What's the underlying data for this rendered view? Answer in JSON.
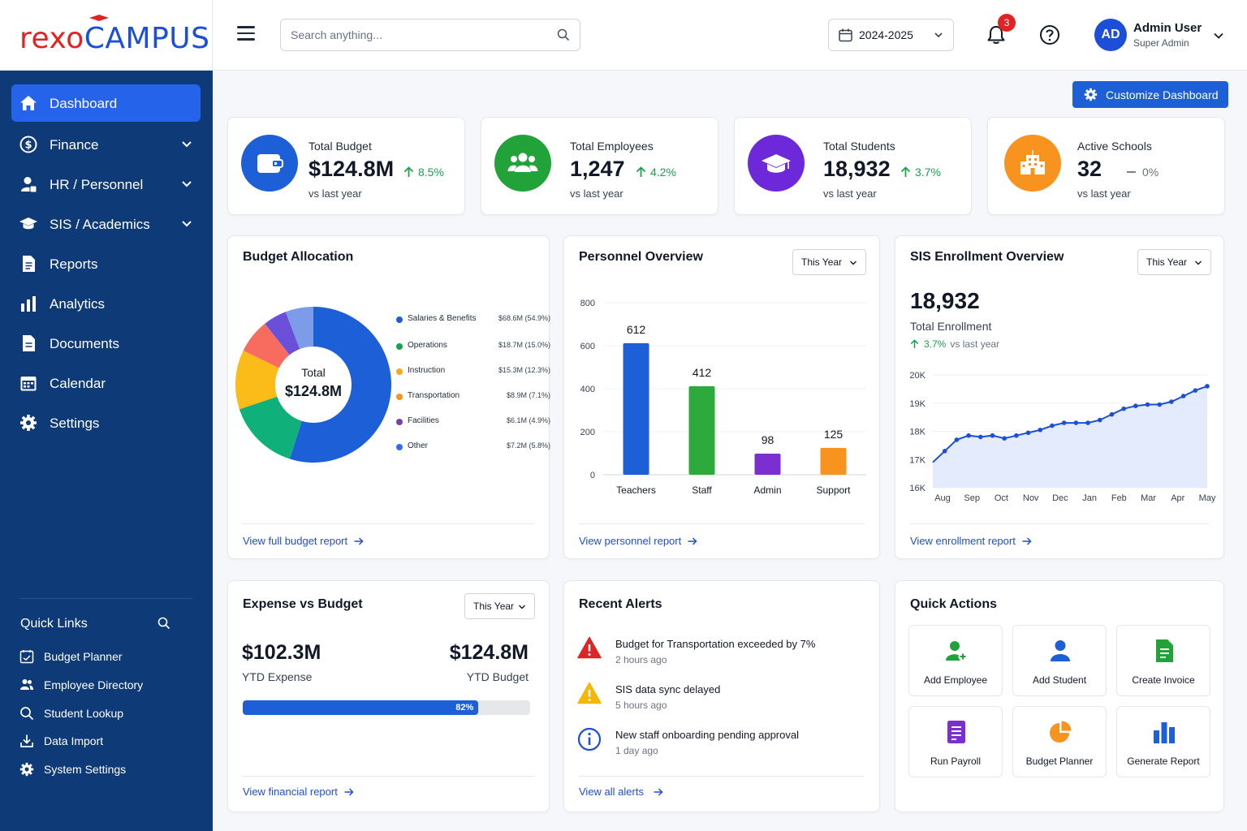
{
  "brand": {
    "part1": "rexo",
    "part2": "CAMPUS"
  },
  "header": {
    "search_placeholder": "Search anything...",
    "year": "2024-2025",
    "notif_count": "3",
    "user_initials": "AD",
    "user_name": "Admin User",
    "user_role": "Super Admin"
  },
  "sidebar": {
    "items": [
      {
        "label": "Dashboard",
        "icon": "home-icon",
        "active": true
      },
      {
        "label": "Finance",
        "icon": "dollar-circle-icon",
        "has_children": true
      },
      {
        "label": "HR / Personnel",
        "icon": "person-badge-icon",
        "has_children": true
      },
      {
        "label": "SIS / Academics",
        "icon": "graduation-cap-icon",
        "has_children": true
      },
      {
        "label": "Reports",
        "icon": "report-icon"
      },
      {
        "label": "Analytics",
        "icon": "bar-chart-icon"
      },
      {
        "label": "Documents",
        "icon": "document-icon"
      },
      {
        "label": "Calendar",
        "icon": "calendar-icon"
      },
      {
        "label": "Settings",
        "icon": "gear-icon"
      }
    ],
    "quick_links_title": "Quick Links",
    "quick_links": [
      {
        "label": "Budget Planner",
        "icon": "budget-planner-icon"
      },
      {
        "label": "Employee Directory",
        "icon": "people-icon"
      },
      {
        "label": "Student Lookup",
        "icon": "search-icon"
      },
      {
        "label": "Data Import",
        "icon": "download-icon"
      },
      {
        "label": "System Settings",
        "icon": "gear-icon"
      }
    ]
  },
  "customize_label": "Customize Dashboard",
  "stats": [
    {
      "label": "Total Budget",
      "value": "$124.8M",
      "change": "8.5%",
      "trend": "up",
      "sub": "vs last year",
      "color": "#1d5fd6",
      "icon": "wallet-icon"
    },
    {
      "label": "Total Employees",
      "value": "1,247",
      "change": "4.2%",
      "trend": "up",
      "sub": "vs last year",
      "color": "#22a33a",
      "icon": "people-icon"
    },
    {
      "label": "Total Students",
      "value": "18,932",
      "change": "3.7%",
      "trend": "up",
      "sub": "vs last year",
      "color": "#6d28d9",
      "icon": "graduation-cap-icon"
    },
    {
      "label": "Active Schools",
      "value": "32",
      "change": "0%",
      "trend": "flat",
      "sub": "vs last year",
      "color": "#f7931e",
      "icon": "school-icon"
    }
  ],
  "budget": {
    "title": "Budget Allocation",
    "center_label": "Total",
    "center_value": "$124.8M",
    "link": "View full budget report"
  },
  "personnel": {
    "title": "Personnel Overview",
    "select": "This Year",
    "link": "View personnel report"
  },
  "enrollment": {
    "title": "SIS Enrollment Overview",
    "select": "This Year",
    "value": "18,932",
    "label": "Total Enrollment",
    "change": "3.7%",
    "change_sub": "vs last year",
    "link": "View enrollment report"
  },
  "expense": {
    "title": "Expense vs Budget",
    "select": "This Year",
    "ytd_expense": "$102.3M",
    "ytd_expense_label": "YTD Expense",
    "ytd_budget": "$124.8M",
    "ytd_budget_label": "YTD Budget",
    "progress": 0.82,
    "progress_label": "82%",
    "link": "View financial report"
  },
  "alerts": {
    "title": "Recent Alerts",
    "items": [
      {
        "title": "Budget for Transportation exceeded by 7%",
        "time": "2 hours ago",
        "icon": "error-triangle-icon"
      },
      {
        "title": "SIS data sync delayed",
        "time": "5 hours ago",
        "icon": "warning-triangle-icon"
      },
      {
        "title": "New staff onboarding pending approval",
        "time": "1 day ago",
        "icon": "info-icon"
      }
    ],
    "link": "View all alerts"
  },
  "quick_actions": {
    "title": "Quick Actions",
    "items": [
      {
        "label": "Add Employee",
        "icon": "add-employee-icon"
      },
      {
        "label": "Add Student",
        "icon": "add-student-icon"
      },
      {
        "label": "Create Invoice",
        "icon": "invoice-icon"
      },
      {
        "label": "Run Payroll",
        "icon": "payroll-icon"
      },
      {
        "label": "Budget Planner",
        "icon": "pie-chart-icon"
      },
      {
        "label": "Generate Report",
        "icon": "bar-chart-icon"
      }
    ]
  },
  "chart_data": [
    {
      "type": "pie",
      "title": "Budget Allocation",
      "categories": [
        "Salaries & Benefits",
        "Operations",
        "Instruction",
        "Transportation",
        "Facilities",
        "Other"
      ],
      "values": [
        54.9,
        15.0,
        12.3,
        7.1,
        4.9,
        5.8
      ],
      "value_labels": [
        "$68.6M (54.9%)",
        "$18.7M (15.0%)",
        "$15.3M (12.3%)",
        "$8.9M (7.1%)",
        "$6.1M (4.9%)",
        "$7.2M (5.8%)"
      ],
      "colors": [
        "#1d5fd6",
        "#10b07a",
        "#fbbc1a",
        "#f76c5e",
        "#6b4fd8",
        "#7c9be8"
      ],
      "legend_colors": [
        "#1d5fd6",
        "#16a34a",
        "#f5a623",
        "#f7931e",
        "#7b3fa0",
        "#2f6fe0"
      ]
    },
    {
      "type": "bar",
      "title": "Personnel Overview",
      "categories": [
        "Teachers",
        "Staff",
        "Admin",
        "Support"
      ],
      "values": [
        612,
        412,
        98,
        125
      ],
      "colors": [
        "#1d5fd6",
        "#2eaa3c",
        "#7b2fd0",
        "#f7931e"
      ],
      "yticks": [
        "0",
        "200",
        "400",
        "600",
        "800"
      ],
      "ylim": [
        0,
        800
      ]
    },
    {
      "type": "area",
      "title": "SIS Enrollment Overview",
      "x_labels": [
        "Aug",
        "Sep",
        "Oct",
        "Nov",
        "Dec",
        "Jan",
        "Feb",
        "Mar",
        "Apr",
        "May"
      ],
      "values": [
        16900,
        17300,
        17700,
        17850,
        17800,
        17850,
        17750,
        17850,
        17950,
        18050,
        18200,
        18300,
        18300,
        18300,
        18400,
        18600,
        18800,
        18900,
        18950,
        18950,
        19050,
        19250,
        19450,
        19600
      ],
      "yticks": [
        "16K",
        "17K",
        "18K",
        "19K",
        "20K"
      ],
      "ylim": [
        16000,
        20000
      ],
      "color": "#1d4ed8"
    }
  ]
}
